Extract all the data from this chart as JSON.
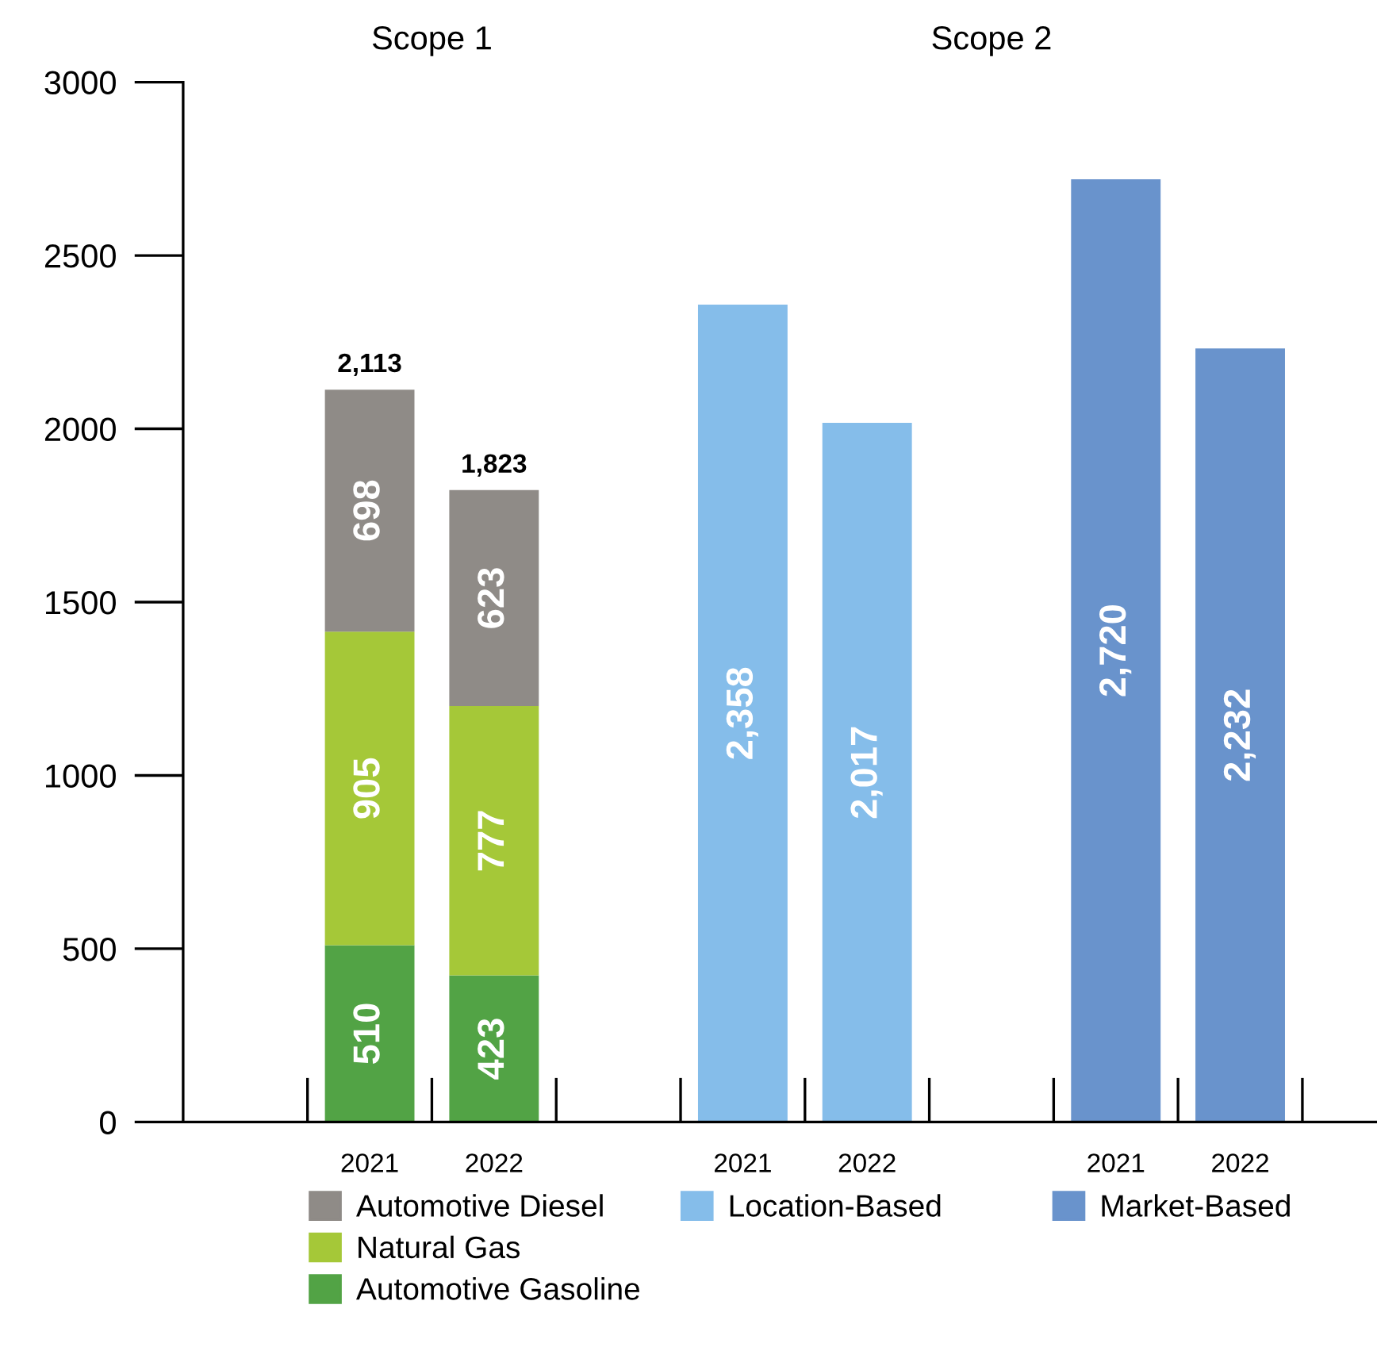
{
  "chart_data": {
    "type": "bar",
    "stacked": true,
    "categories": [
      null,
      "2021",
      "2022",
      null,
      "2021",
      "2022",
      null,
      "2021",
      "2022"
    ],
    "series": [
      {
        "name": "Automotive Gasoline",
        "color": "#52a345",
        "values": [
          null,
          510,
          423,
          null,
          null,
          null,
          null,
          null,
          null
        ],
        "value_labels": [
          null,
          "510",
          "423",
          null,
          null,
          null,
          null,
          null,
          null
        ]
      },
      {
        "name": "Natural Gas",
        "color": "#a5c838",
        "values": [
          null,
          905,
          777,
          null,
          null,
          null,
          null,
          null,
          null
        ],
        "value_labels": [
          null,
          "905",
          "777",
          null,
          null,
          null,
          null,
          null,
          null
        ]
      },
      {
        "name": "Automotive Diesel",
        "color": "#8f8b87",
        "values": [
          null,
          698,
          623,
          null,
          null,
          null,
          null,
          null,
          null
        ],
        "value_labels": [
          null,
          "698",
          "623",
          null,
          null,
          null,
          null,
          null,
          null
        ]
      },
      {
        "name": "Location-Based",
        "color": "#85bdea",
        "values": [
          null,
          null,
          null,
          null,
          2358,
          2017,
          null,
          null,
          null
        ],
        "value_labels": [
          null,
          null,
          null,
          null,
          "2,358",
          "2,017",
          null,
          null,
          null
        ]
      },
      {
        "name": "Market-Based",
        "color": "#6993cc",
        "values": [
          null,
          null,
          null,
          null,
          null,
          null,
          null,
          2720,
          2232
        ],
        "value_labels": [
          null,
          null,
          null,
          null,
          null,
          null,
          null,
          "2,720",
          "2,232"
        ]
      }
    ],
    "totals": [
      null,
      "2,113",
      "1,823",
      null,
      null,
      null,
      null,
      null,
      null
    ],
    "annotations": [
      "Scope 1",
      "Scope 2"
    ],
    "ylim": [
      0,
      3000
    ],
    "yticks": [
      0,
      500,
      1000,
      1500,
      2000,
      2500,
      3000
    ],
    "grid": false,
    "legend": "bottom"
  }
}
